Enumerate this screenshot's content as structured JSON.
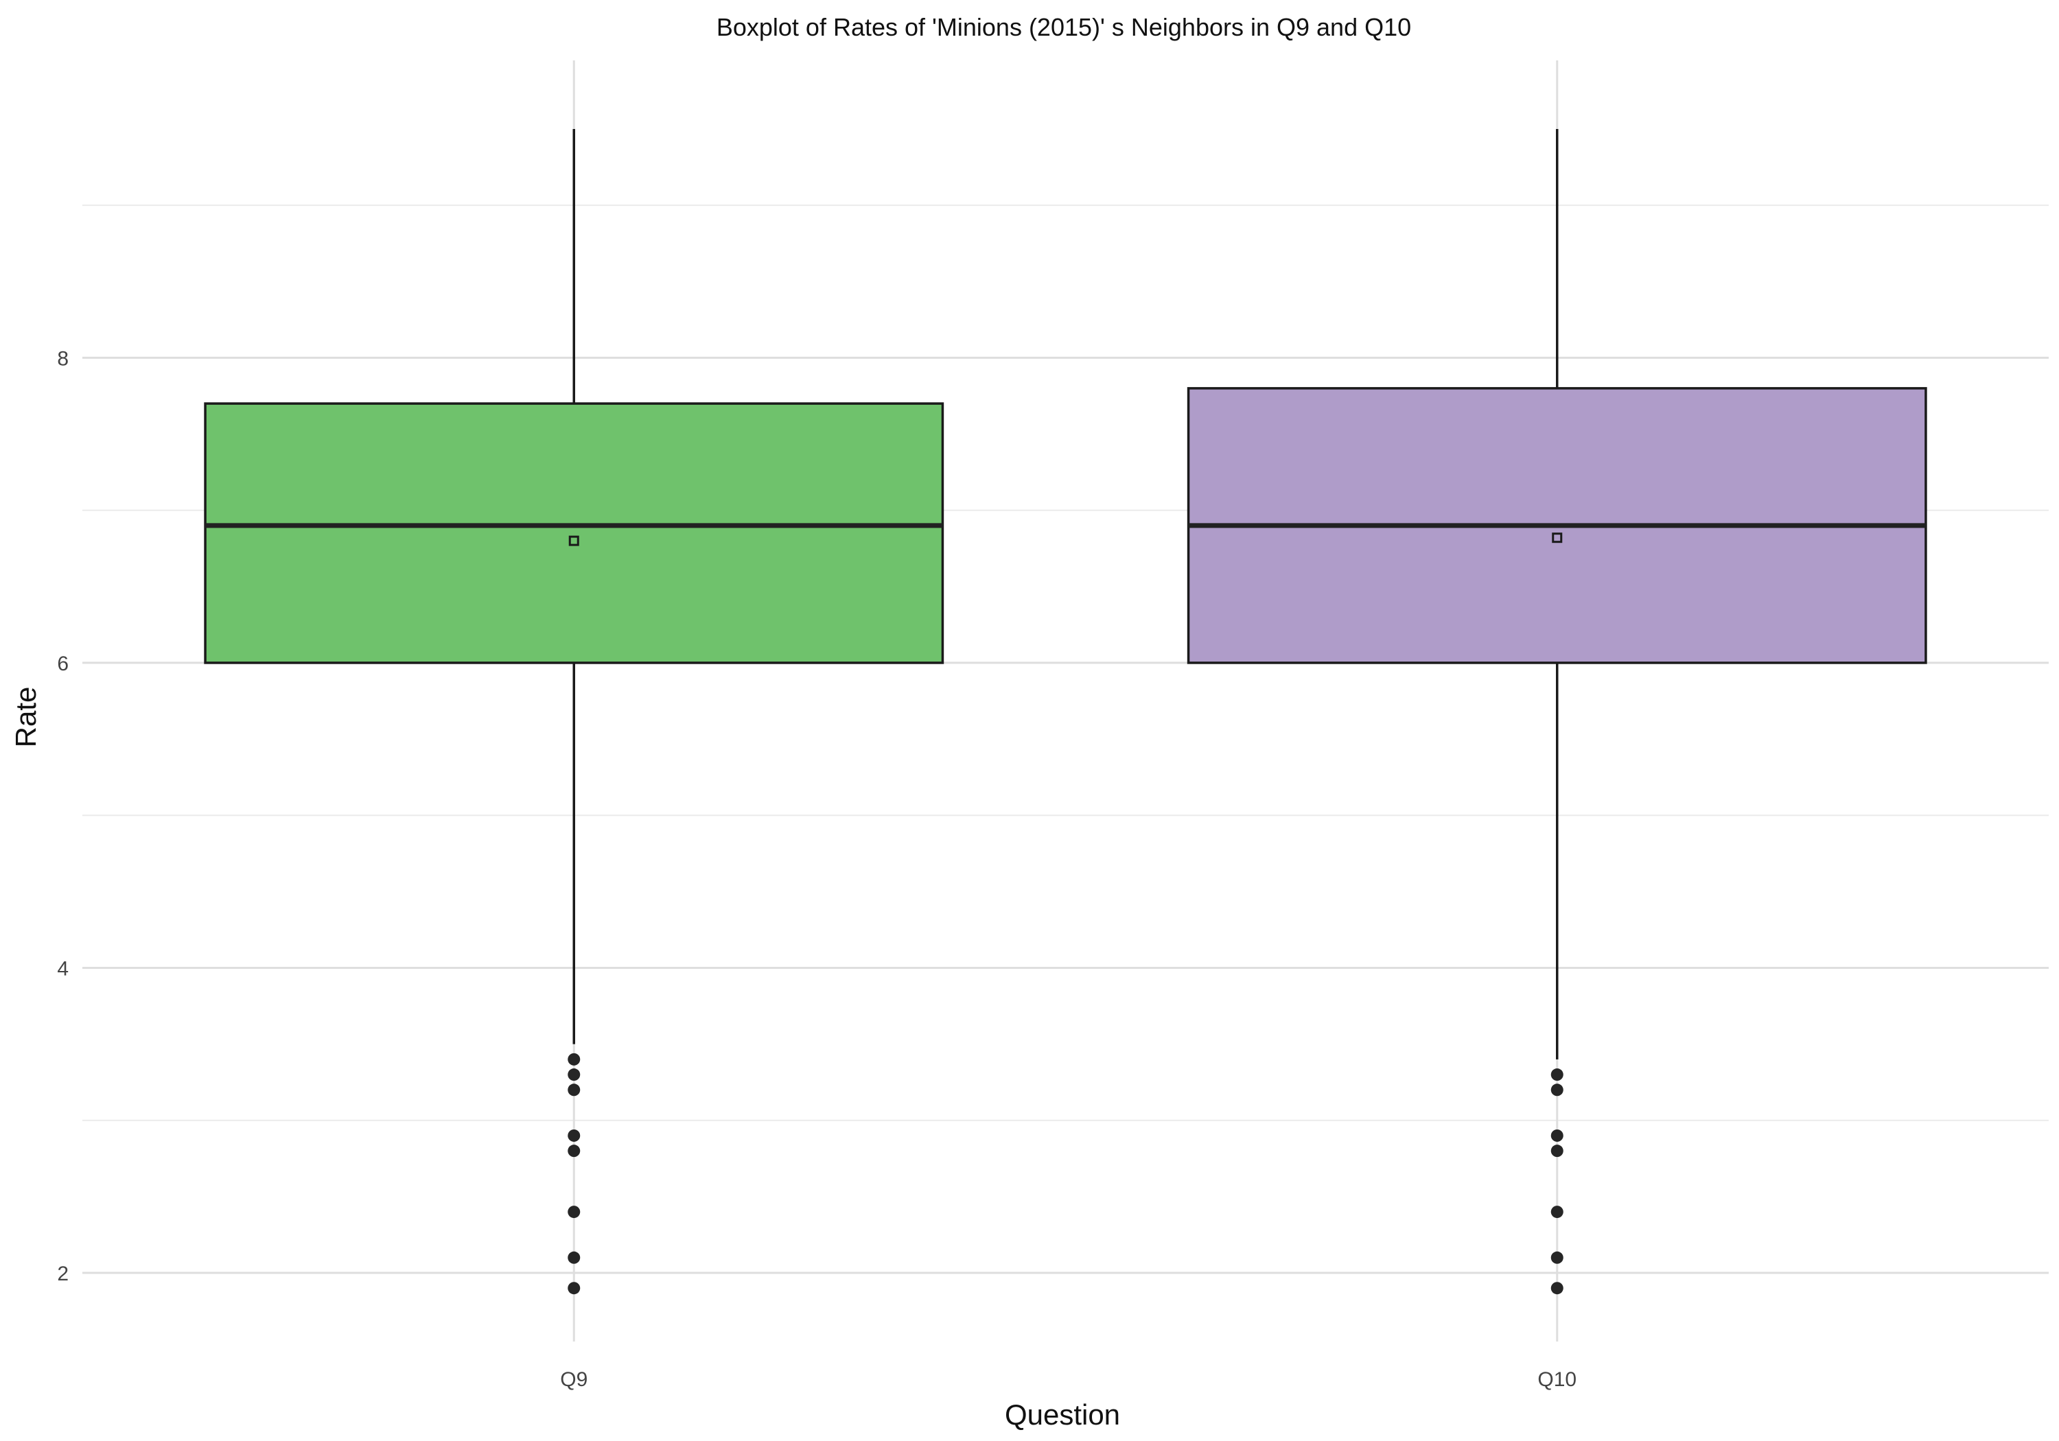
{
  "chart_data": {
    "type": "boxplot",
    "title": "Boxplot of Rates of 'Minions (2015)' s Neighbors in Q9 and Q10",
    "xlabel": "Question",
    "ylabel": "Rate",
    "ylim": [
      1.55,
      9.95
    ],
    "y_ticks": [
      2,
      4,
      6,
      8
    ],
    "categories": [
      "Q9",
      "Q10"
    ],
    "grid": true,
    "series": [
      {
        "category": "Q9",
        "color": "#6fc26c",
        "whisker_low": 3.5,
        "q1": 6.0,
        "median": 6.9,
        "q3": 7.7,
        "whisker_high": 9.5,
        "mean": 6.8,
        "outliers": [
          3.4,
          3.3,
          3.2,
          2.9,
          2.8,
          2.4,
          2.1,
          1.9
        ]
      },
      {
        "category": "Q10",
        "color": "#af9cc9",
        "whisker_low": 3.4,
        "q1": 6.0,
        "median": 6.9,
        "q3": 7.8,
        "whisker_high": 9.5,
        "mean": 6.82,
        "outliers": [
          3.3,
          3.2,
          2.9,
          2.8,
          2.4,
          2.1,
          1.9
        ]
      }
    ]
  }
}
